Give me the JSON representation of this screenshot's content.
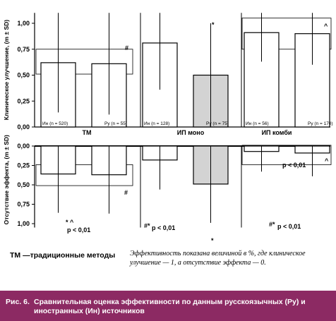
{
  "chart_data": {
    "type": "bar",
    "upper_ylabel": "Клиническое улучшение, (m ± SD)",
    "lower_ylabel": "Отсутствие эффекта, (m ± SD)",
    "upper_ticks": [
      "0,00",
      "0,25",
      "0,50",
      "0,75",
      "1,00"
    ],
    "lower_ticks": [
      "0,00",
      "0,25",
      "0,50",
      "0,75",
      "1,00"
    ],
    "upper_ylim": [
      0,
      1.1
    ],
    "lower_ylim": [
      0,
      1.05
    ],
    "groups": [
      {
        "name": "ТМ",
        "bars": [
          {
            "label": "Ин (n = 520)",
            "improvement": 0.62,
            "improvement_sd": 0.48,
            "no_effect": 0.36,
            "no_effect_sd": 0.5,
            "shaded": false
          },
          {
            "label": "Ру (n = 55)",
            "improvement": 0.61,
            "improvement_sd": 0.49,
            "no_effect": 0.37,
            "no_effect_sd": 0.5,
            "shaded": false
          }
        ]
      },
      {
        "name": "ИП моно",
        "bars": [
          {
            "label": "Ин (n = 128)",
            "improvement": 0.81,
            "improvement_sd": 0.45,
            "no_effect": 0.18,
            "no_effect_sd": 0.38,
            "shaded": false
          },
          {
            "label": "Ру (n = 75)",
            "improvement": 0.5,
            "improvement_sd": 0.5,
            "no_effect": 0.49,
            "no_effect_sd": 0.5,
            "shaded": true
          }
        ]
      },
      {
        "name": "ИП комби",
        "bars": [
          {
            "label": "Ин (n = 56)",
            "improvement": 0.91,
            "improvement_sd": 0.28,
            "no_effect": 0.07,
            "no_effect_sd": 0.26,
            "shaded": false
          },
          {
            "label": "Ру (n = 170)",
            "improvement": 0.9,
            "improvement_sd": 0.3,
            "no_effect": 0.09,
            "no_effect_sd": 0.3,
            "shaded": false
          }
        ]
      }
    ],
    "annotations": {
      "upper_tm_hash": "#",
      "upper_ipmono_star": "*",
      "upper_ipkombi_caret": "^",
      "lower_tm_hash": "#",
      "lower_tm_marks": "* ^",
      "lower_tm_p": "р < 0,01",
      "lower_ipmono_marks": "#*",
      "lower_ipmono_p": "р < 0,01",
      "lower_ipmono_star": "*",
      "lower_ipkombi_caret": "^",
      "lower_ipkombi_p": "р < 0,01",
      "lower_ipkombi_marks": "#*",
      "lower_ipkombi_p2": "р < 0,01"
    }
  },
  "legend": {
    "abbr": "ТМ —традиционные методы"
  },
  "footnote": "Эффективность показана величиной в %, где клиническое улучшение — 1, а отсутствие эффекта — 0.",
  "caption": {
    "prefix": "Рис. 6.",
    "text": "Сравнительная оценка эффективности по данным русскоязычных (Ру) и иностранных (Ин) источников",
    "background": "#8c2a63"
  }
}
